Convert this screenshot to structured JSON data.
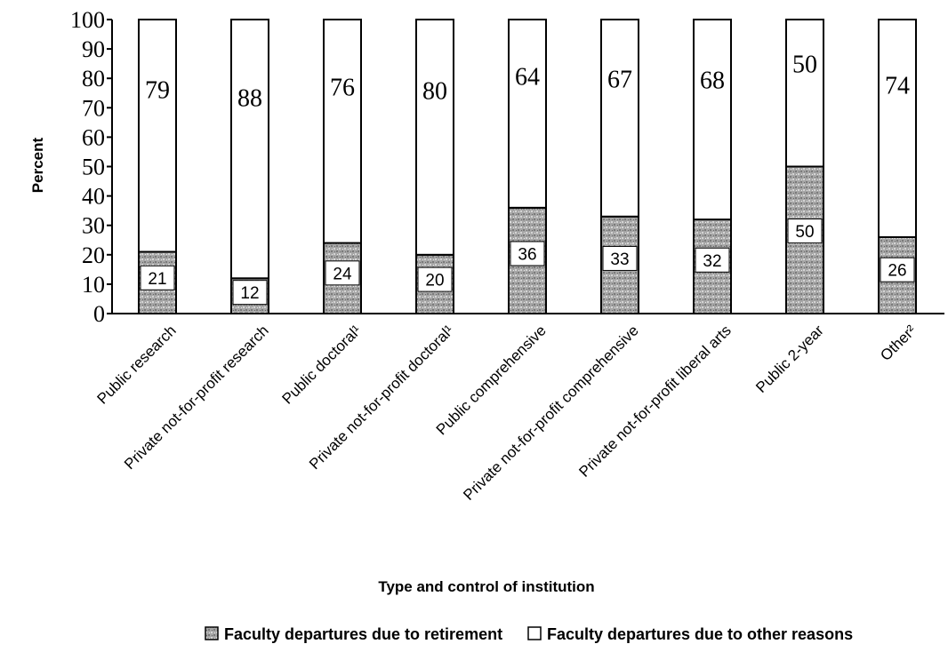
{
  "chart_data": {
    "type": "bar",
    "stacked": true,
    "ylabel": "Percent",
    "xlabel": "Type and control of institution",
    "ylim": [
      0,
      100
    ],
    "yticks": [
      0,
      10,
      20,
      30,
      40,
      50,
      60,
      70,
      80,
      90,
      100
    ],
    "categories": [
      "Public research",
      "Private not-for-profit research",
      "Public doctoral¹",
      "Private not-for-profit doctoral¹",
      "Public comprehensive",
      "Private not-for-profit comprehensive",
      "Private not-for-profit liberal arts",
      "Public 2-year",
      "Other²"
    ],
    "series": [
      {
        "name": "Faculty departures due to retirement",
        "values": [
          21,
          12,
          24,
          20,
          36,
          33,
          32,
          50,
          26
        ],
        "color": "#a9a9a9"
      },
      {
        "name": "Faculty departures due to other reasons",
        "values": [
          79,
          88,
          76,
          80,
          64,
          67,
          68,
          50,
          74
        ],
        "color": "#ffffff"
      }
    ],
    "legend_position": "bottom",
    "grid": false
  }
}
